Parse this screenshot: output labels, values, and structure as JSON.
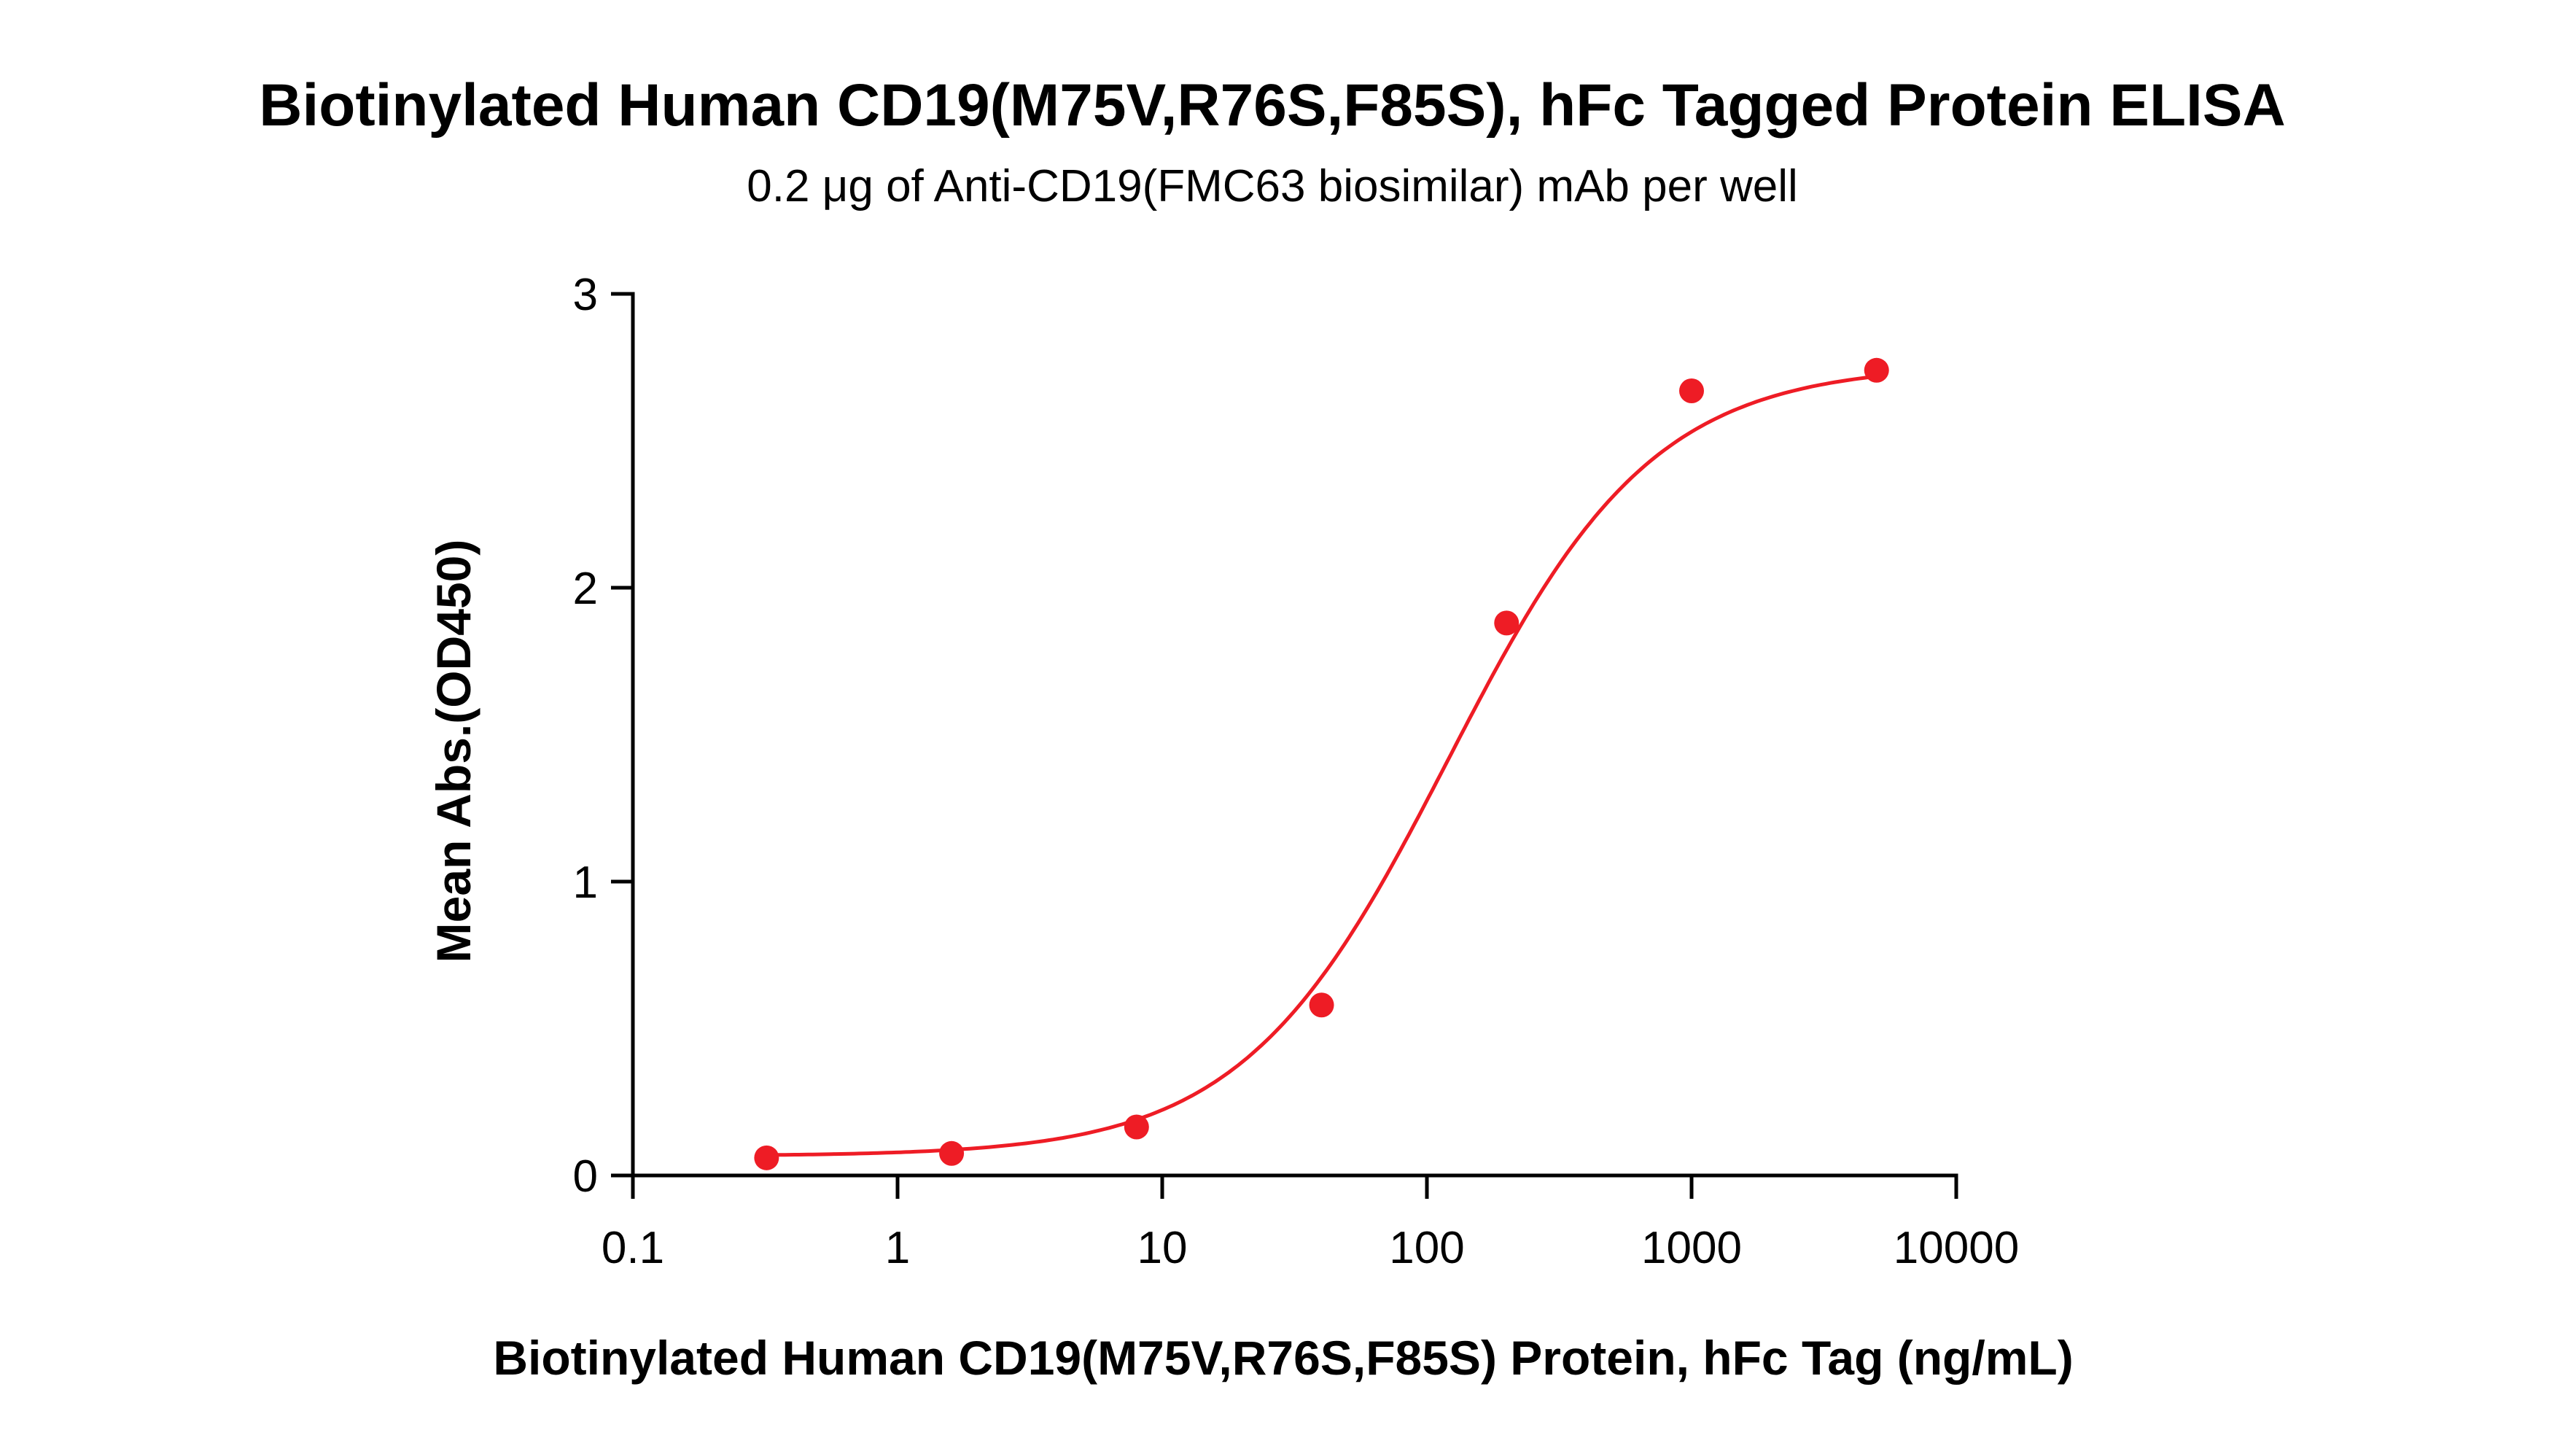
{
  "chart_data": {
    "type": "scatter",
    "title": "Biotinylated Human CD19(M75V,R76S,F85S), hFc Tagged Protein ELISA",
    "subtitle": "0.2 μg of Anti-CD19(FMC63 biosimilar) mAb per well",
    "xlabel": "Biotinylated Human CD19(M75V,R76S,F85S) Protein, hFc Tag (ng/mL)",
    "ylabel": "Mean Abs.(OD450)",
    "x_scale": "log",
    "xlim": [
      0.1,
      10000
    ],
    "ylim": [
      0,
      3
    ],
    "x_ticks": [
      0.1,
      1,
      10,
      100,
      1000,
      10000
    ],
    "x_tick_labels": [
      "0.1",
      "1",
      "10",
      "100",
      "1000",
      "10000"
    ],
    "y_ticks": [
      0,
      1,
      2,
      3
    ],
    "y_tick_labels": [
      "0",
      "1",
      "2",
      "3"
    ],
    "grid": false,
    "legend": "none",
    "color": "#ee1c25",
    "fit": "four-parameter logistic curve",
    "series": [
      {
        "x": [
          0.32,
          1.6,
          8,
          40,
          200,
          1000,
          5000
        ],
        "y": [
          0.06,
          0.075,
          0.165,
          0.58,
          1.88,
          2.67,
          2.74
        ]
      }
    ]
  }
}
